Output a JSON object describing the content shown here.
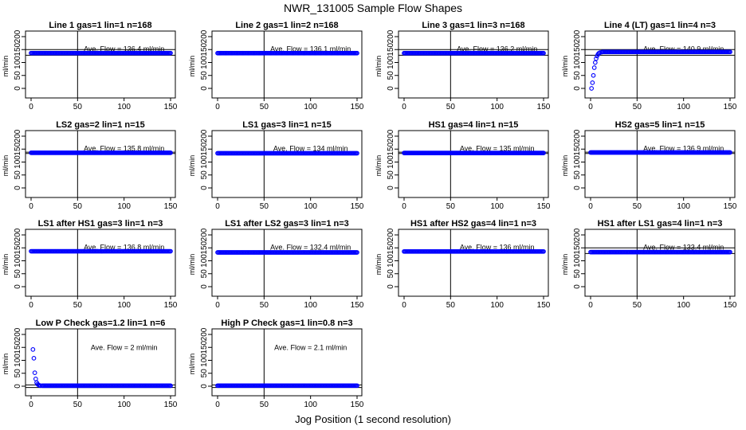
{
  "figure": {
    "title": "NWR_131005  Sample Flow Shapes",
    "xlabel": "Jog Position (1 second resolution)"
  },
  "chart_data": [
    {
      "type": "scatter",
      "title": "Line 1 gas=1 lin=1 n=168",
      "ylabel": "ml/min",
      "xlim": [
        0,
        150
      ],
      "ylim": [
        0,
        200
      ],
      "xticks": [
        0,
        50,
        100,
        150
      ],
      "yticks": [
        0,
        50,
        100,
        150,
        200
      ],
      "vline": 50,
      "hlines": [
        150,
        128
      ],
      "annotation": "Ave. Flow = 136.4  ml/min",
      "series": [
        {
          "name": "",
          "color": "#0000ff",
          "pattern": "flat",
          "level": 136.4
        }
      ]
    },
    {
      "type": "scatter",
      "title": "Line 2 gas=1 lin=2 n=168",
      "ylabel": "ml/min",
      "xlim": [
        0,
        150
      ],
      "ylim": [
        0,
        200
      ],
      "xticks": [
        0,
        50,
        100,
        150
      ],
      "yticks": [
        0,
        50,
        100,
        150,
        200
      ],
      "vline": 50,
      "hlines": [],
      "annotation": "Ave. Flow = 136.1  ml/min",
      "series": [
        {
          "name": "",
          "color": "#0000ff",
          "pattern": "flat",
          "level": 136.1
        }
      ]
    },
    {
      "type": "scatter",
      "title": "Line 3 gas=1 lin=3 n=168",
      "ylabel": "ml/min",
      "xlim": [
        0,
        150
      ],
      "ylim": [
        0,
        200
      ],
      "xticks": [
        0,
        50,
        100,
        150
      ],
      "yticks": [
        0,
        50,
        100,
        150,
        200
      ],
      "vline": 50,
      "hlines": [
        150,
        128
      ],
      "annotation": "Ave. Flow = 136.2  ml/min",
      "series": [
        {
          "name": "",
          "color": "#0000ff",
          "pattern": "flat",
          "level": 136.2
        }
      ]
    },
    {
      "type": "scatter",
      "title": "Line 4 (LT) gas=1 lin=4 n=3",
      "ylabel": "ml/min",
      "xlim": [
        0,
        150
      ],
      "ylim": [
        0,
        200
      ],
      "xticks": [
        0,
        50,
        100,
        150
      ],
      "yticks": [
        0,
        50,
        100,
        150,
        200
      ],
      "vline": 50,
      "hlines": [
        150,
        128
      ],
      "annotation": "Ave. Flow = 140.9  ml/min",
      "series": [
        {
          "name": "",
          "color": "#0000ff",
          "pattern": "rise",
          "level": 140.9,
          "start": [
            [
              1,
              0
            ],
            [
              2,
              22
            ],
            [
              3,
              50
            ],
            [
              4,
              80
            ],
            [
              5,
              100
            ],
            [
              6,
              115
            ],
            [
              7,
              125
            ],
            [
              8,
              132
            ],
            [
              9,
              136
            ],
            [
              10,
              138
            ],
            [
              12,
              140
            ]
          ]
        }
      ]
    },
    {
      "type": "scatter",
      "title": "LS2 gas=2 lin=1 n=15",
      "ylabel": "ml/min",
      "xlim": [
        0,
        150
      ],
      "ylim": [
        0,
        200
      ],
      "xticks": [
        0,
        50,
        100,
        150
      ],
      "yticks": [
        0,
        50,
        100,
        150,
        200
      ],
      "vline": 50,
      "hlines": [
        138,
        133
      ],
      "annotation": "Ave. Flow = 135.8  ml/min",
      "series": [
        {
          "name": "",
          "color": "#0000ff",
          "pattern": "flat",
          "level": 135.8
        }
      ]
    },
    {
      "type": "scatter",
      "title": "LS1 gas=3 lin=1 n=15",
      "ylabel": "ml/min",
      "xlim": [
        0,
        150
      ],
      "ylim": [
        0,
        200
      ],
      "xticks": [
        0,
        50,
        100,
        150
      ],
      "yticks": [
        0,
        50,
        100,
        150,
        200
      ],
      "vline": 50,
      "hlines": [],
      "annotation": "Ave. Flow = 134  ml/min",
      "series": [
        {
          "name": "",
          "color": "#0000ff",
          "pattern": "flat",
          "level": 134
        }
      ]
    },
    {
      "type": "scatter",
      "title": "HS1 gas=4 lin=1 n=15",
      "ylabel": "ml/min",
      "xlim": [
        0,
        150
      ],
      "ylim": [
        0,
        200
      ],
      "xticks": [
        0,
        50,
        100,
        150
      ],
      "yticks": [
        0,
        50,
        100,
        150,
        200
      ],
      "vline": 50,
      "hlines": [
        138,
        133
      ],
      "annotation": "Ave. Flow = 135  ml/min",
      "series": [
        {
          "name": "",
          "color": "#0000ff",
          "pattern": "flat",
          "level": 135
        }
      ]
    },
    {
      "type": "scatter",
      "title": "HS2 gas=5 lin=1 n=15",
      "ylabel": "ml/min",
      "xlim": [
        0,
        150
      ],
      "ylim": [
        0,
        200
      ],
      "xticks": [
        0,
        50,
        100,
        150
      ],
      "yticks": [
        0,
        50,
        100,
        150,
        200
      ],
      "vline": 50,
      "hlines": [
        138,
        133
      ],
      "annotation": "Ave. Flow = 136.9  ml/min",
      "series": [
        {
          "name": "",
          "color": "#0000ff",
          "pattern": "flat",
          "level": 136.9
        }
      ]
    },
    {
      "type": "scatter",
      "title": "LS1 after HS1 gas=3 lin=1 n=3",
      "ylabel": "ml/min",
      "xlim": [
        0,
        150
      ],
      "ylim": [
        0,
        200
      ],
      "xticks": [
        0,
        50,
        100,
        150
      ],
      "yticks": [
        0,
        50,
        100,
        150,
        200
      ],
      "vline": 50,
      "hlines": [],
      "annotation": "Ave. Flow = 136.8  ml/min",
      "series": [
        {
          "name": "",
          "color": "#0000ff",
          "pattern": "flat",
          "level": 136.8
        }
      ]
    },
    {
      "type": "scatter",
      "title": "LS1 after LS2 gas=3 lin=1 n=3",
      "ylabel": "ml/min",
      "xlim": [
        0,
        150
      ],
      "ylim": [
        0,
        200
      ],
      "xticks": [
        0,
        50,
        100,
        150
      ],
      "yticks": [
        0,
        50,
        100,
        150,
        200
      ],
      "vline": 50,
      "hlines": [],
      "annotation": "Ave. Flow = 132.4  ml/min",
      "series": [
        {
          "name": "",
          "color": "#0000ff",
          "pattern": "flat",
          "level": 132.4
        }
      ]
    },
    {
      "type": "scatter",
      "title": "HS1 after HS2 gas=4 lin=1 n=3",
      "ylabel": "ml/min",
      "xlim": [
        0,
        150
      ],
      "ylim": [
        0,
        200
      ],
      "xticks": [
        0,
        50,
        100,
        150
      ],
      "yticks": [
        0,
        50,
        100,
        150,
        200
      ],
      "vline": 50,
      "hlines": [],
      "annotation": "Ave. Flow = 136  ml/min",
      "series": [
        {
          "name": "",
          "color": "#0000ff",
          "pattern": "flat",
          "level": 136
        }
      ]
    },
    {
      "type": "scatter",
      "title": "HS1 after LS1 gas=4 lin=1 n=3",
      "ylabel": "ml/min",
      "xlim": [
        0,
        150
      ],
      "ylim": [
        0,
        200
      ],
      "xticks": [
        0,
        50,
        100,
        150
      ],
      "yticks": [
        0,
        50,
        100,
        150,
        200
      ],
      "vline": 50,
      "hlines": [
        150,
        128
      ],
      "annotation": "Ave. Flow = 133.4  ml/min",
      "series": [
        {
          "name": "",
          "color": "#0000ff",
          "pattern": "flat",
          "level": 133.4
        }
      ]
    },
    {
      "type": "scatter",
      "title": "Low P Check gas=1.2 lin=1 n=6",
      "ylabel": "ml/min",
      "xlim": [
        0,
        150
      ],
      "ylim": [
        0,
        200
      ],
      "xticks": [
        0,
        50,
        100,
        150
      ],
      "yticks": [
        0,
        50,
        100,
        150,
        200
      ],
      "vline": 50,
      "hlines": [
        5,
        -5
      ],
      "annotation": "Ave. Flow =  2  ml/min",
      "series": [
        {
          "name": "",
          "color": "#0000ff",
          "pattern": "decay",
          "level": 2,
          "start": [
            [
              2,
              142
            ],
            [
              3,
              108
            ],
            [
              4,
              52
            ],
            [
              5,
              28
            ],
            [
              6,
              14
            ],
            [
              7,
              8
            ],
            [
              8,
              5
            ],
            [
              9,
              3
            ],
            [
              10,
              2
            ],
            [
              12,
              2
            ]
          ]
        }
      ]
    },
    {
      "type": "scatter",
      "title": "High P Check gas=1 lin=0.8 n=3",
      "ylabel": "ml/min",
      "xlim": [
        0,
        150
      ],
      "ylim": [
        0,
        200
      ],
      "xticks": [
        0,
        50,
        100,
        150
      ],
      "yticks": [
        0,
        50,
        100,
        150,
        200
      ],
      "vline": 50,
      "hlines": [
        5,
        -5
      ],
      "annotation": "Ave. Flow =  2.1  ml/min",
      "series": [
        {
          "name": "",
          "color": "#0000ff",
          "pattern": "flat",
          "level": 2.1
        }
      ]
    }
  ]
}
